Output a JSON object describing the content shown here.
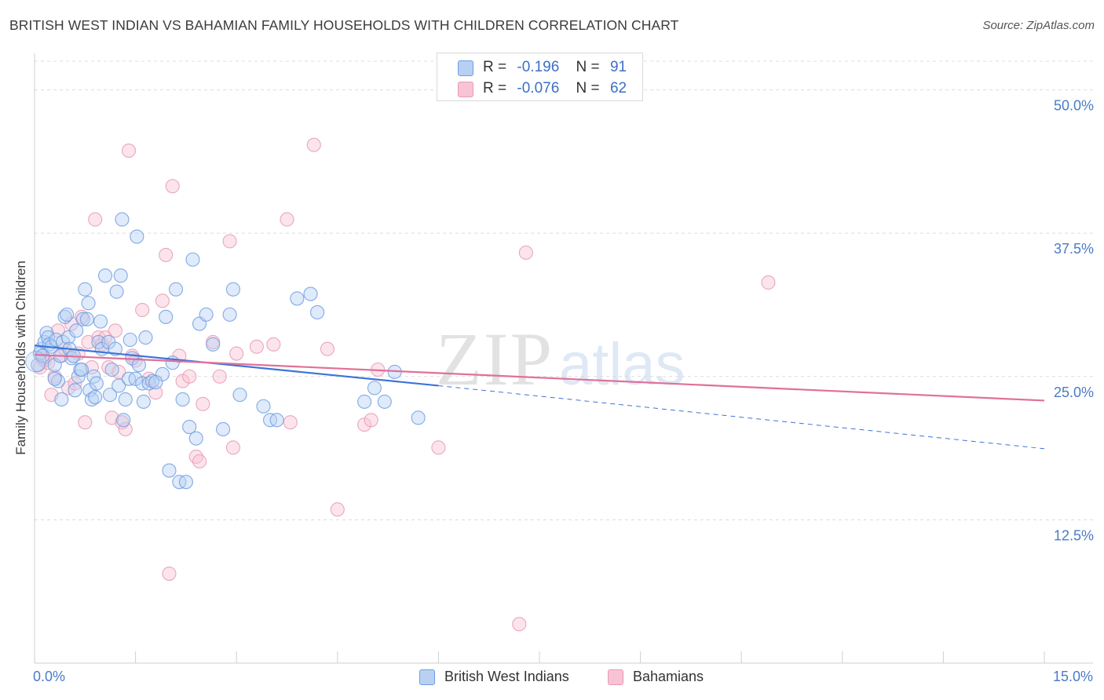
{
  "chart_data": {
    "type": "scatter",
    "title": "BRITISH WEST INDIAN VS BAHAMIAN FAMILY HOUSEHOLDS WITH CHILDREN CORRELATION CHART",
    "source": "Source: ZipAtlas.com",
    "xlabel": "",
    "ylabel": "Family Households with Children",
    "xlim": [
      0,
      15
    ],
    "ylim": [
      0,
      52.5
    ],
    "x_tick_labels": {
      "min": "0.0%",
      "max": "15.0%"
    },
    "y_ticks": [
      12.5,
      25.0,
      37.5,
      50.0
    ],
    "y_tick_labels": [
      "12.5%",
      "25.0%",
      "37.5%",
      "50.0%"
    ],
    "watermark": "ZIPatlas",
    "legend": [
      {
        "r_label": "R =",
        "r_value": "-0.196",
        "n_label": "N =",
        "n_value": "91"
      },
      {
        "r_label": "R =",
        "r_value": "-0.076",
        "n_label": "N =",
        "n_value": "62"
      }
    ],
    "series": [
      {
        "name": "British West Indians",
        "color": "#6e9de0",
        "fill": "#b8d1f3",
        "trend": {
          "x0": 0,
          "y0": 27.7,
          "x1": 6.0,
          "y1": 24.2,
          "dash_to_x": 15,
          "dash_to_y": 18.7
        },
        "points": [
          [
            0.05,
            26.0
          ],
          [
            0.08,
            27.0
          ],
          [
            0.1,
            27.4
          ],
          [
            0.12,
            26.8
          ],
          [
            0.15,
            28.0
          ],
          [
            0.18,
            28.8
          ],
          [
            0.2,
            28.4
          ],
          [
            0.22,
            27.8
          ],
          [
            0.25,
            27.6
          ],
          [
            0.3,
            26.0
          ],
          [
            0.32,
            28.2
          ],
          [
            0.35,
            24.6
          ],
          [
            0.38,
            26.8
          ],
          [
            0.4,
            23.0
          ],
          [
            0.42,
            28.0
          ],
          [
            0.45,
            30.2
          ],
          [
            0.48,
            30.4
          ],
          [
            0.5,
            28.4
          ],
          [
            0.52,
            27.4
          ],
          [
            0.55,
            26.6
          ],
          [
            0.58,
            26.8
          ],
          [
            0.6,
            23.8
          ],
          [
            0.62,
            29.0
          ],
          [
            0.65,
            25.0
          ],
          [
            0.68,
            25.6
          ],
          [
            0.7,
            25.6
          ],
          [
            0.72,
            30.0
          ],
          [
            0.75,
            32.6
          ],
          [
            0.78,
            30.0
          ],
          [
            0.8,
            31.4
          ],
          [
            0.82,
            23.8
          ],
          [
            0.85,
            23.0
          ],
          [
            0.88,
            25.0
          ],
          [
            0.9,
            23.2
          ],
          [
            0.92,
            24.4
          ],
          [
            0.95,
            28.0
          ],
          [
            0.98,
            29.8
          ],
          [
            1.0,
            27.4
          ],
          [
            1.05,
            33.8
          ],
          [
            1.1,
            28.0
          ],
          [
            1.12,
            23.4
          ],
          [
            1.15,
            25.6
          ],
          [
            1.2,
            27.4
          ],
          [
            1.22,
            32.4
          ],
          [
            1.25,
            24.2
          ],
          [
            1.28,
            33.8
          ],
          [
            1.3,
            38.7
          ],
          [
            1.32,
            21.2
          ],
          [
            1.35,
            23.0
          ],
          [
            1.4,
            24.8
          ],
          [
            1.42,
            28.2
          ],
          [
            1.45,
            26.6
          ],
          [
            1.5,
            24.8
          ],
          [
            1.52,
            37.2
          ],
          [
            1.55,
            26.0
          ],
          [
            1.6,
            24.4
          ],
          [
            1.62,
            22.8
          ],
          [
            1.65,
            28.4
          ],
          [
            1.7,
            24.4
          ],
          [
            1.75,
            24.6
          ],
          [
            1.9,
            25.2
          ],
          [
            1.95,
            30.2
          ],
          [
            2.0,
            16.8
          ],
          [
            2.05,
            26.2
          ],
          [
            2.1,
            32.6
          ],
          [
            2.15,
            15.8
          ],
          [
            2.2,
            23.0
          ],
          [
            2.25,
            15.8
          ],
          [
            2.3,
            20.6
          ],
          [
            2.35,
            35.2
          ],
          [
            2.4,
            19.6
          ],
          [
            2.45,
            29.6
          ],
          [
            2.55,
            30.4
          ],
          [
            2.65,
            27.8
          ],
          [
            2.8,
            20.4
          ],
          [
            2.9,
            30.4
          ],
          [
            2.95,
            32.6
          ],
          [
            3.05,
            23.4
          ],
          [
            3.4,
            22.4
          ],
          [
            3.5,
            21.2
          ],
          [
            3.6,
            21.2
          ],
          [
            3.9,
            31.8
          ],
          [
            4.1,
            32.2
          ],
          [
            4.2,
            30.6
          ],
          [
            4.9,
            22.8
          ],
          [
            5.05,
            24.0
          ],
          [
            5.2,
            22.8
          ],
          [
            5.35,
            25.4
          ],
          [
            5.7,
            21.4
          ],
          [
            1.8,
            24.5
          ],
          [
            0.3,
            24.8
          ]
        ]
      },
      {
        "name": "Bahamians",
        "color": "#e899b3",
        "fill": "#f8c4d5",
        "trend": {
          "x0": 0,
          "y0": 26.9,
          "x1": 15,
          "y1": 22.9
        },
        "points": [
          [
            0.08,
            25.8
          ],
          [
            0.15,
            26.4
          ],
          [
            0.2,
            26.2
          ],
          [
            0.25,
            23.4
          ],
          [
            0.3,
            25.0
          ],
          [
            0.35,
            29.0
          ],
          [
            0.4,
            26.8
          ],
          [
            0.45,
            27.4
          ],
          [
            0.5,
            24.0
          ],
          [
            0.55,
            29.6
          ],
          [
            0.6,
            24.4
          ],
          [
            0.65,
            27.0
          ],
          [
            0.7,
            30.2
          ],
          [
            0.75,
            21.0
          ],
          [
            0.8,
            28.0
          ],
          [
            0.85,
            25.8
          ],
          [
            0.9,
            38.7
          ],
          [
            0.95,
            28.4
          ],
          [
            1.0,
            27.8
          ],
          [
            1.05,
            28.4
          ],
          [
            1.1,
            25.8
          ],
          [
            1.15,
            21.4
          ],
          [
            1.2,
            29.0
          ],
          [
            1.25,
            25.4
          ],
          [
            1.3,
            21.0
          ],
          [
            1.35,
            20.4
          ],
          [
            1.4,
            44.7
          ],
          [
            1.45,
            26.8
          ],
          [
            1.5,
            26.4
          ],
          [
            1.6,
            30.8
          ],
          [
            1.7,
            24.8
          ],
          [
            1.8,
            23.6
          ],
          [
            1.9,
            31.6
          ],
          [
            1.95,
            35.6
          ],
          [
            2.0,
            7.8
          ],
          [
            2.05,
            41.6
          ],
          [
            2.15,
            26.8
          ],
          [
            2.2,
            24.6
          ],
          [
            2.3,
            25.0
          ],
          [
            2.4,
            18.0
          ],
          [
            2.45,
            17.6
          ],
          [
            2.5,
            22.6
          ],
          [
            2.65,
            28.0
          ],
          [
            2.75,
            25.0
          ],
          [
            2.9,
            36.8
          ],
          [
            2.95,
            18.8
          ],
          [
            3.0,
            27.0
          ],
          [
            3.3,
            27.6
          ],
          [
            3.55,
            27.8
          ],
          [
            3.75,
            38.7
          ],
          [
            3.8,
            21.0
          ],
          [
            4.15,
            45.2
          ],
          [
            4.35,
            27.4
          ],
          [
            4.5,
            13.4
          ],
          [
            4.9,
            20.8
          ],
          [
            5.0,
            21.2
          ],
          [
            5.1,
            25.6
          ],
          [
            6.0,
            18.8
          ],
          [
            7.2,
            3.4
          ],
          [
            7.3,
            35.8
          ],
          [
            10.9,
            33.2
          ],
          [
            0.12,
            26.6
          ]
        ]
      }
    ]
  }
}
